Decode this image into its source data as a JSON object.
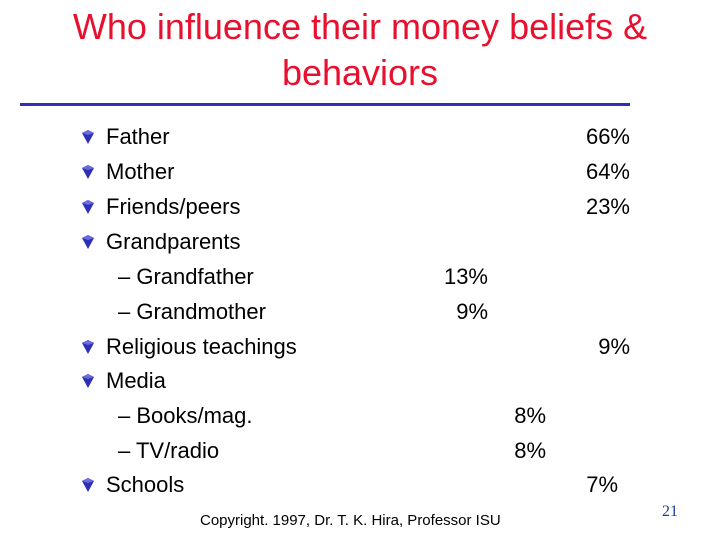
{
  "slide": {
    "title": "Who influence their money beliefs & behaviors",
    "items": [
      {
        "label": "Father",
        "value": "66%"
      },
      {
        "label": "Mother",
        "value": "64%"
      },
      {
        "label": "Friends/peers",
        "value": "23%"
      },
      {
        "label": "Grandparents",
        "value": ""
      },
      {
        "label": "– Grandfather",
        "value": "13%"
      },
      {
        "label": "– Grandmother",
        "value": "9%"
      },
      {
        "label": "Religious teachings",
        "value": "9%"
      },
      {
        "label": "Media",
        "value": ""
      },
      {
        "label": "– Books/mag.",
        "value": "8%"
      },
      {
        "label": "– TV/radio",
        "value": "8%"
      },
      {
        "label": "Schools",
        "value": "7%"
      }
    ],
    "footer": "Copyright. 1997, Dr. T. K. Hira, Professor ISU",
    "page_number": "21",
    "colors": {
      "title": "#e8102e",
      "rule": "#2f2fb5",
      "bullet": "#2f2fb5",
      "page_number": "#1a3aa0"
    }
  }
}
